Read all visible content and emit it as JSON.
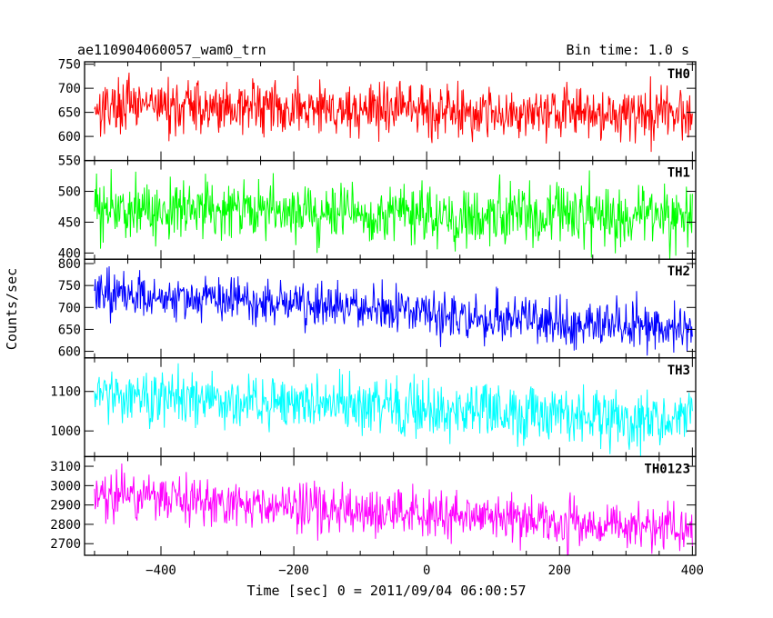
{
  "chart_data": {
    "type": "line",
    "title": "ae110904060057_wam0_trn",
    "bin_time_label": "Bin time: 1.0 s",
    "xlabel": "Time [sec] 0 = 2011/09/04 06:00:57",
    "ylabel": "Counts/sec",
    "xlim": [
      -515,
      405
    ],
    "xticks": [
      -400,
      -200,
      0,
      200,
      400
    ],
    "grid": false,
    "series": [
      {
        "name": "TH0",
        "color": "#ff0000",
        "ylim": [
          550,
          755
        ],
        "yticks": [
          550,
          600,
          650,
          700,
          750
        ],
        "mean_start": 665,
        "mean_end": 645,
        "noise": 28
      },
      {
        "name": "TH1",
        "color": "#00ff00",
        "ylim": [
          390,
          550
        ],
        "yticks": [
          400,
          450,
          500
        ],
        "mean_start": 470,
        "mean_end": 460,
        "noise": 25
      },
      {
        "name": "TH2",
        "color": "#0000ff",
        "ylim": [
          585,
          810
        ],
        "yticks": [
          600,
          650,
          700,
          750,
          800
        ],
        "mean_start": 735,
        "mean_end": 650,
        "noise": 27
      },
      {
        "name": "TH3",
        "color": "#00ffff",
        "ylim": [
          935,
          1185
        ],
        "yticks": [
          1000,
          1100
        ],
        "mean_start": 1090,
        "mean_end": 1025,
        "noise": 35
      },
      {
        "name": "TH0123",
        "color": "#ff00ff",
        "ylim": [
          2640,
          3150
        ],
        "yticks": [
          2700,
          2800,
          2900,
          3000,
          3100
        ],
        "mean_start": 2950,
        "mean_end": 2770,
        "noise": 65
      }
    ]
  }
}
